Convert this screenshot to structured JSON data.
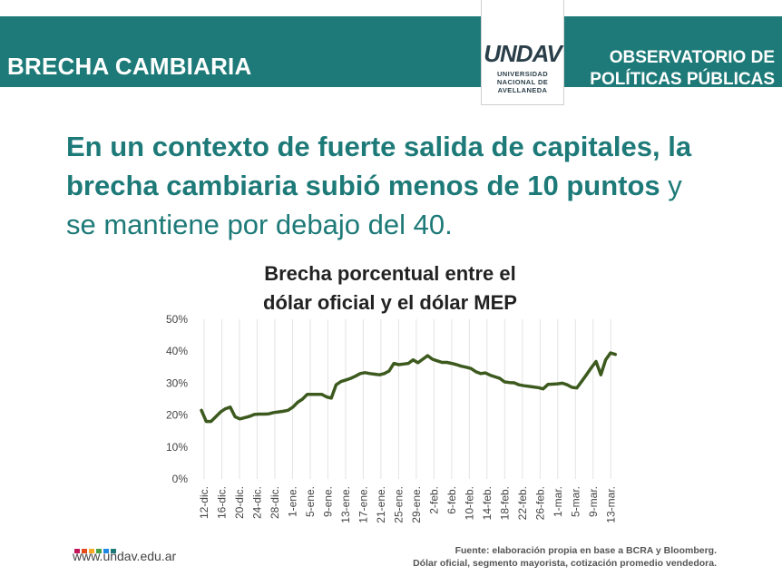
{
  "header": {
    "left_title": "BRECHA CAMBIARIA",
    "right_line1": "OBSERVATORIO DE",
    "right_line2": "POLÍTICAS PÚBLICAS",
    "logo_word": "UNDAV",
    "logo_line1": "UNIVERSIDAD",
    "logo_line2": "NACIONAL DE",
    "logo_line3": "AVELLANEDA"
  },
  "headline": {
    "bold_part": "En un contexto de fuerte salida de capitales, la brecha cambiaria subió menos de 10 puntos",
    "normal_part": " y se mantiene por debajo del 40."
  },
  "footer": {
    "url": "www.undav.edu.ar",
    "source_line1": "Fuente: elaboración propia en base a BCRA y Bloomberg.",
    "source_line2": "Dólar oficial, segmento mayorista, cotización promedio vendedora.",
    "dot_colors": [
      "#c2185b",
      "#e64a19",
      "#f9a825",
      "#43a047",
      "#1e88e5",
      "#1d7a78"
    ]
  },
  "colors": {
    "accent": "#1d7a78",
    "line": "#3d5a1e"
  },
  "chart_data": {
    "type": "line",
    "title_line1": "Brecha porcentual entre el",
    "title_line2": "dólar oficial y el dólar MEP",
    "xlabel": "",
    "ylabel": "",
    "ylim": [
      0,
      50
    ],
    "y_ticks": [
      "0%",
      "10%",
      "20%",
      "30%",
      "40%",
      "50%"
    ],
    "x_tick_labels": [
      "12-dic.",
      "16-dic.",
      "20-dic.",
      "24-dic.",
      "28-dic.",
      "1-ene.",
      "5-ene.",
      "9-ene.",
      "13-ene.",
      "17-ene.",
      "21-ene.",
      "25-ene.",
      "29-ene.",
      "2-feb.",
      "6-feb.",
      "10-feb.",
      "14-feb.",
      "18-feb.",
      "22-feb.",
      "26-feb.",
      "1-mar.",
      "5-mar.",
      "9-mar.",
      "13-mar."
    ],
    "grid": "vertical",
    "series": [
      {
        "values": [
          21.5,
          18,
          18,
          19.5,
          21,
          22,
          22.5,
          19.5,
          18.8,
          19.2,
          19.6,
          20.2,
          20.3,
          20.3,
          20.4,
          20.8,
          21,
          21.2,
          21.5,
          22.5,
          24,
          25,
          26.5,
          26.5,
          26.5,
          26.5,
          25.7,
          25.3,
          29.5,
          30.5,
          31,
          31.5,
          32.2,
          33,
          33.3,
          33,
          32.8,
          32.6,
          33,
          33.8,
          36.2,
          35.8,
          36,
          36.2,
          37.3,
          36.4,
          37.5,
          38.6,
          37.5,
          37,
          36.5,
          36.5,
          36.2,
          35.8,
          35.3,
          35,
          34.6,
          33.6,
          33,
          33.2,
          32.5,
          32,
          31.5,
          30.4,
          30.2,
          30.1,
          29.5,
          29.2,
          29,
          28.8,
          28.6,
          28.2,
          29.6,
          29.7,
          29.8,
          30,
          29.5,
          28.7,
          28.5,
          30.5,
          32.6,
          34.8,
          36.8,
          32.6,
          37.3,
          39.5,
          39
        ]
      }
    ]
  }
}
